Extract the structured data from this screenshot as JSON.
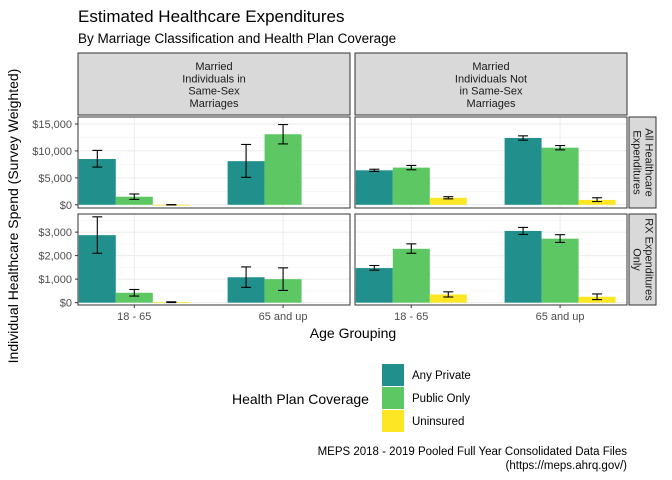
{
  "chart_data": {
    "type": "bar",
    "title": "Estimated Healthcare Expenditures",
    "subtitle": "By Marriage Classification and Health Plan Coverage",
    "xlabel": "Age Grouping",
    "ylabel": "Individual Healthcare Spend (Survey Weighted)",
    "caption_lines": [
      "MEPS 2018 - 2019 Pooled Full Year Consolidated Data Files",
      "(https://meps.ahrq.gov/)"
    ],
    "categories": [
      "18 - 65",
      "65 and up"
    ],
    "series": [
      {
        "name": "Any Private",
        "color": "#21908C"
      },
      {
        "name": "Public Only",
        "color": "#5DC863"
      },
      {
        "name": "Uninsured",
        "color": "#FDE725"
      }
    ],
    "legend": {
      "title": "Health Plan Coverage",
      "position": "bottom"
    },
    "grid": true,
    "column_facets": [
      {
        "label_lines": [
          "Married",
          "Individuals in",
          "Same-Sex",
          "Marriages"
        ]
      },
      {
        "label_lines": [
          "Married",
          "Individuals Not",
          "in Same-Sex",
          "Marriages"
        ]
      }
    ],
    "row_facets": [
      {
        "label_lines": [
          "All Healthcare",
          "Expenditures"
        ],
        "ylim": [
          -600,
          16300
        ],
        "yticks": [
          0,
          5000,
          10000,
          15000
        ],
        "ytick_labels": [
          "$0",
          "$5,000",
          "$10,000",
          "$15,000"
        ],
        "panels": [
          {
            "groups": [
              {
                "bars": [
                  {
                    "series": "Any Private",
                    "value": 8500,
                    "lo": 7000,
                    "hi": 10100
                  },
                  {
                    "series": "Public Only",
                    "value": 1500,
                    "lo": 1000,
                    "hi": 2000
                  },
                  {
                    "series": "Uninsured",
                    "value": 0,
                    "lo": -30,
                    "hi": 30
                  }
                ]
              },
              {
                "bars": [
                  {
                    "series": "Any Private",
                    "value": 8100,
                    "lo": 5100,
                    "hi": 11200
                  },
                  {
                    "series": "Public Only",
                    "value": 13100,
                    "lo": 11300,
                    "hi": 14900
                  }
                ]
              }
            ]
          },
          {
            "groups": [
              {
                "bars": [
                  {
                    "series": "Any Private",
                    "value": 6400,
                    "lo": 6200,
                    "hi": 6600
                  },
                  {
                    "series": "Public Only",
                    "value": 6900,
                    "lo": 6500,
                    "hi": 7300
                  },
                  {
                    "series": "Uninsured",
                    "value": 1300,
                    "lo": 1100,
                    "hi": 1500
                  }
                ]
              },
              {
                "bars": [
                  {
                    "series": "Any Private",
                    "value": 12400,
                    "lo": 12000,
                    "hi": 12800
                  },
                  {
                    "series": "Public Only",
                    "value": 10600,
                    "lo": 10200,
                    "hi": 11000
                  },
                  {
                    "series": "Uninsured",
                    "value": 900,
                    "lo": 600,
                    "hi": 1300
                  }
                ]
              }
            ]
          }
        ]
      },
      {
        "label_lines": [
          "RX Expenditures",
          "Only"
        ],
        "ylim": [
          -100,
          3770
        ],
        "yticks": [
          0,
          1000,
          2000,
          3000
        ],
        "ytick_labels": [
          "$0",
          "$1,000",
          "$2,000",
          "$3,000"
        ],
        "panels": [
          {
            "groups": [
              {
                "bars": [
                  {
                    "series": "Any Private",
                    "value": 2870,
                    "lo": 2100,
                    "hi": 3650
                  },
                  {
                    "series": "Public Only",
                    "value": 420,
                    "lo": 280,
                    "hi": 560
                  },
                  {
                    "series": "Uninsured",
                    "value": 20,
                    "lo": 5,
                    "hi": 35
                  }
                ]
              },
              {
                "bars": [
                  {
                    "series": "Any Private",
                    "value": 1080,
                    "lo": 650,
                    "hi": 1520
                  },
                  {
                    "series": "Public Only",
                    "value": 1000,
                    "lo": 520,
                    "hi": 1480
                  }
                ]
              }
            ]
          },
          {
            "groups": [
              {
                "bars": [
                  {
                    "series": "Any Private",
                    "value": 1470,
                    "lo": 1380,
                    "hi": 1580
                  },
                  {
                    "series": "Public Only",
                    "value": 2290,
                    "lo": 2100,
                    "hi": 2500
                  },
                  {
                    "series": "Uninsured",
                    "value": 350,
                    "lo": 240,
                    "hi": 460
                  }
                ]
              },
              {
                "bars": [
                  {
                    "series": "Any Private",
                    "value": 3050,
                    "lo": 2900,
                    "hi": 3200
                  },
                  {
                    "series": "Public Only",
                    "value": 2720,
                    "lo": 2560,
                    "hi": 2890
                  },
                  {
                    "series": "Uninsured",
                    "value": 250,
                    "lo": 130,
                    "hi": 370
                  }
                ]
              }
            ]
          }
        ]
      }
    ]
  }
}
